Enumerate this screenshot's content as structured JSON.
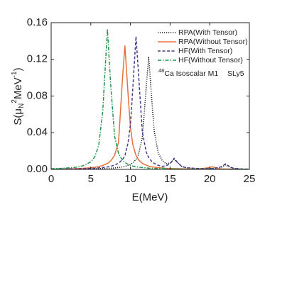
{
  "chart_data": {
    "type": "line",
    "x_label": "E(MeV)",
    "y_label": [
      "S(μ",
      "N",
      "2",
      "MeV",
      "-1",
      ")"
    ],
    "annotation": [
      "48",
      "Ca  Isoscalar M1",
      "SLy5"
    ],
    "xlim": [
      0,
      25
    ],
    "xticks": [
      0,
      5,
      10,
      15,
      20,
      25
    ],
    "ylim": [
      0,
      0.16
    ],
    "yticks": [
      {
        "value": 0,
        "label": "0.00"
      },
      {
        "value": 0.04,
        "label": "0.04"
      },
      {
        "value": 0.08,
        "label": "0.08"
      },
      {
        "value": 0.12,
        "label": "0.12"
      },
      {
        "value": 0.16,
        "label": "0.16"
      }
    ],
    "legend": "upper right",
    "x": [
      0,
      1,
      2,
      3,
      4,
      5,
      5.5,
      6,
      6.5,
      7.1,
      7.5,
      8,
      8.5,
      9,
      9.3,
      9.7,
      10,
      10.3,
      10.7,
      11,
      11.5,
      12,
      12.3,
      12.7,
      13,
      13.5,
      14,
      14.5,
      15,
      15.5,
      16,
      16.5,
      17,
      18,
      19,
      20,
      20.3,
      21,
      21.5,
      22,
      22.5,
      23,
      24,
      25
    ],
    "series": [
      {
        "name": "RPA(With Tensor)",
        "color": "#1a1a1a",
        "style": "dotted",
        "values": [
          0.0002,
          0.0002,
          0.0003,
          0.0004,
          0.0004,
          0.0006,
          0.0007,
          0.0008,
          0.0009,
          0.0011,
          0.0013,
          0.0016,
          0.0021,
          0.0027,
          0.0033,
          0.0044,
          0.0055,
          0.0072,
          0.0109,
          0.0159,
          0.0346,
          0.0904,
          0.123,
          0.075,
          0.0416,
          0.0182,
          0.0098,
          0.006,
          0.007,
          0.011,
          0.007,
          0.003,
          0.002,
          0.001,
          0.0008,
          0.0008,
          0.0009,
          0.0015,
          0.0025,
          0.005,
          0.0025,
          0.001,
          0.0004,
          0.0002
        ]
      },
      {
        "name": "RPA(Without Tensor)",
        "color": "#e8703a",
        "style": "solid",
        "values": [
          0.0004,
          0.0005,
          0.0006,
          0.0008,
          0.0012,
          0.0018,
          0.0023,
          0.003,
          0.0042,
          0.0066,
          0.009,
          0.0154,
          0.0296,
          0.0993,
          0.135,
          0.0823,
          0.0456,
          0.027,
          0.0153,
          0.0107,
          0.0066,
          0.0045,
          0.0036,
          0.0028,
          0.0024,
          0.0019,
          0.0015,
          0.0012,
          0.001,
          0.0009,
          0.0008,
          0.0007,
          0.0006,
          0.0005,
          0.0008,
          0.002,
          0.003,
          0.0012,
          0.0006,
          0.0005,
          0.0004,
          0.0003,
          0.0002,
          0.0002
        ]
      },
      {
        "name": "HF(With Tensor)",
        "color": "#4b3a8c",
        "style": "dashed",
        "values": [
          0.0003,
          0.0004,
          0.0005,
          0.0006,
          0.0008,
          0.0011,
          0.0013,
          0.0016,
          0.002,
          0.0027,
          0.0034,
          0.0046,
          0.0068,
          0.0107,
          0.0147,
          0.029,
          0.049,
          0.0884,
          0.145,
          0.1066,
          0.0407,
          0.0187,
          0.0129,
          0.0085,
          0.0065,
          0.0045,
          0.0033,
          0.004,
          0.006,
          0.012,
          0.007,
          0.003,
          0.002,
          0.0012,
          0.0009,
          0.0009,
          0.001,
          0.0018,
          0.003,
          0.006,
          0.003,
          0.0012,
          0.0005,
          0.0003
        ]
      },
      {
        "name": "HF(Without Tensor)",
        "color": "#1f9a4a",
        "style": "dashdot",
        "values": [
          0.0008,
          0.001,
          0.0015,
          0.0022,
          0.0039,
          0.0082,
          0.0137,
          0.0262,
          0.0627,
          0.153,
          0.0933,
          0.0361,
          0.0173,
          0.0099,
          0.0075,
          0.0055,
          0.0044,
          0.0036,
          0.0029,
          0.0025,
          0.002,
          0.0016,
          0.0014,
          0.0012,
          0.0011,
          0.0009,
          0.0015,
          0.0009,
          0.0006,
          0.0006,
          0.0005,
          0.0004,
          0.0004,
          0.0003,
          0.0003,
          0.0002,
          0.0002,
          0.0002,
          0.0002,
          0.0002,
          0.0001,
          0.0001,
          0.0001,
          0.0001
        ]
      }
    ]
  }
}
